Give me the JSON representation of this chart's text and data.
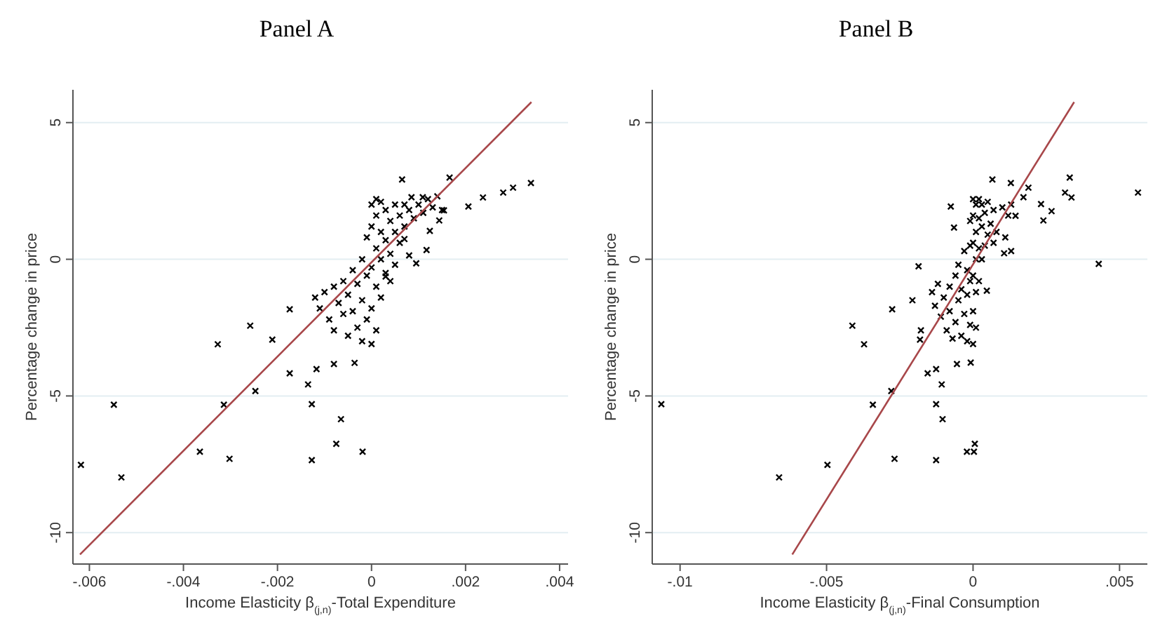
{
  "chart_data": [
    {
      "type": "scatter",
      "title": "Panel A",
      "xlabel": "Income Elasticity β$_{(j,n)}$-Total Expenditure",
      "ylabel": "Percentage change in price",
      "xlim": [
        -0.00635,
        0.00418
      ],
      "ylim": [
        -11.15,
        6.2
      ],
      "xticks": [
        {
          "value": -0.006,
          "label": "-.006"
        },
        {
          "value": -0.004,
          "label": "-.004"
        },
        {
          "value": -0.002,
          "label": "-.002"
        },
        0,
        {
          "value": 0.002,
          "label": ".002"
        },
        {
          "value": 0.004,
          "label": ".004"
        }
      ],
      "yticks": [
        -10,
        -5,
        0,
        5
      ],
      "grid": "y",
      "series": [
        {
          "marker": "cross",
          "color": "#000000",
          "x": [
            -0.00618,
            -0.00548,
            -0.00532,
            -0.00365,
            -0.00327,
            -0.00314,
            -0.00302,
            -0.00258,
            -0.00247,
            -0.00211,
            -0.00174,
            -0.00174,
            -0.00135,
            -0.00127,
            -0.00127,
            -0.00117,
            -0.0008,
            -0.00065,
            -0.00075,
            -0.00036,
            -0.00019,
            0.00065,
            0.00166,
            0.00206,
            0.00237,
            0.0028,
            0.00301,
            0.00339,
            0.00154,
            0.00144,
            0.00124,
            0.00117,
            0.00095,
            0.0008,
            0.00109,
            0.00085,
            0.0007,
            0.0004,
            0.0003,
            -0.0012,
            -0.0011,
            -0.001,
            -0.0009,
            -0.0008,
            -0.0008,
            -0.0007,
            -0.0006,
            -0.0006,
            -0.0005,
            -0.0005,
            -0.0004,
            -0.0004,
            -0.0003,
            -0.0003,
            -0.0002,
            -0.0002,
            -0.0002,
            -0.0001,
            -0.0001,
            -0.0001,
            0,
            0,
            0,
            0,
            0,
            0.0001,
            0.0001,
            0.0001,
            0.0001,
            0.0001,
            0.0002,
            0.0002,
            0.0002,
            0.0002,
            0.0003,
            0.0003,
            0.0003,
            0.0004,
            0.0004,
            0.0005,
            0.0005,
            0.0005,
            0.0006,
            0.0006,
            0.0007,
            0.0007,
            0.0008,
            0.0009,
            0.001,
            0.0011,
            0.0012,
            0.0013,
            0.0014,
            0.0015
          ],
          "values": [
            -7.52,
            -5.32,
            -7.98,
            -7.04,
            -3.11,
            -5.32,
            -7.3,
            -2.43,
            -4.82,
            -2.94,
            -1.83,
            -4.17,
            -4.58,
            -5.3,
            -7.35,
            -4.02,
            -3.83,
            -5.85,
            -6.75,
            -3.79,
            -7.04,
            2.92,
            2.99,
            1.93,
            2.26,
            2.44,
            2.62,
            2.79,
            1.79,
            1.42,
            1.04,
            0.34,
            -0.15,
            0.14,
            2.27,
            2.27,
            0.74,
            -0.8,
            -0.63,
            -1.4,
            -1.8,
            -1.2,
            -2.2,
            -1,
            -2.6,
            -1.6,
            -0.8,
            -2,
            -2.8,
            -1.3,
            -0.4,
            -1.9,
            -2.5,
            -0.9,
            -3,
            -1.5,
            0,
            -2.2,
            -0.6,
            0.8,
            -3.1,
            -1.8,
            -0.3,
            1.2,
            2,
            -2.6,
            -1,
            0.4,
            1.6,
            2.2,
            -1.4,
            0,
            1,
            2.1,
            -0.5,
            0.7,
            1.8,
            0.2,
            1.4,
            -0.2,
            1,
            2,
            0.6,
            1.6,
            1.2,
            2,
            1.8,
            1.5,
            2,
            1.7,
            2.2,
            1.9,
            2.3,
            1.8
          ]
        },
        {
          "type": "line",
          "color": "#a8474a",
          "x": [
            -0.0062,
            0.0034
          ],
          "values": [
            -10.8,
            5.75
          ]
        }
      ]
    },
    {
      "type": "scatter",
      "title": "Panel B",
      "xlabel": "Income Elasticity β$_{(j,n)}$-Final Consumption",
      "ylabel": "Percentage change in price",
      "xlim": [
        -0.01095,
        0.00595
      ],
      "ylim": [
        -11.15,
        6.2
      ],
      "xticks": [
        {
          "value": -0.01,
          "label": "-.01"
        },
        {
          "value": -0.005,
          "label": "-.005"
        },
        0,
        {
          "value": 0.005,
          "label": ".005"
        }
      ],
      "yticks": [
        -10,
        -5,
        0,
        5
      ],
      "grid": "y",
      "series": [
        {
          "marker": "cross",
          "color": "#000000",
          "x": [
            -0.01064,
            -0.00662,
            -0.00497,
            -0.00412,
            -0.00372,
            -0.00342,
            -0.00279,
            -0.00276,
            -0.00268,
            -0.00186,
            -0.00207,
            -0.00181,
            -0.00178,
            -0.00155,
            -0.00126,
            -0.00126,
            -0.00126,
            -0.00107,
            -0.00104,
            -0.00076,
            -0.00065,
            -0.00055,
            -0.00021,
            6e-05,
            3e-05,
            -8e-05,
            0.00066,
            0.00129,
            0.00189,
            0.00172,
            0.00232,
            0.0024,
            0.00268,
            0.00314,
            0.0033,
            0.00336,
            0.00429,
            0.00563,
            0.00145,
            0.00106,
            0.00047,
            -0.0014,
            -0.0013,
            -0.0012,
            -0.0011,
            -0.001,
            -0.0009,
            -0.0008,
            -0.0008,
            -0.0007,
            -0.0006,
            -0.0006,
            -0.0005,
            -0.0005,
            -0.0004,
            -0.0004,
            -0.0003,
            -0.0003,
            -0.0002,
            -0.0002,
            -0.0002,
            -0.0001,
            -0.0001,
            -0.0001,
            -0.0001,
            0,
            0,
            0,
            0,
            0,
            0,
            0.0001,
            0.0001,
            0.0001,
            0.0001,
            0.0001,
            0.0002,
            0.0002,
            0.0002,
            0.0002,
            0.0003,
            0.0003,
            0.0003,
            0.0004,
            0.0004,
            0.0005,
            0.0005,
            0.0006,
            0.0007,
            0.0007,
            0.0008,
            0.001,
            0.0011,
            0.0012,
            0.0013,
            0.0013
          ],
          "values": [
            -5.3,
            -7.98,
            -7.52,
            -2.43,
            -3.11,
            -5.32,
            -4.82,
            -1.83,
            -7.3,
            -0.26,
            -1.5,
            -2.94,
            -2.6,
            -4.17,
            -4.02,
            -5.3,
            -7.35,
            -4.58,
            -5.85,
            1.93,
            1.16,
            -3.83,
            -7.04,
            -6.75,
            -7.04,
            -3.78,
            2.92,
            2.79,
            2.62,
            2.27,
            2.02,
            1.42,
            1.76,
            2.44,
            2.99,
            2.26,
            -0.17,
            2.44,
            1.59,
            0.22,
            -1.15,
            -1.2,
            -1.7,
            -0.9,
            -2.1,
            -1.4,
            -2.6,
            -1,
            -1.9,
            -2.9,
            -0.6,
            -2.3,
            -1.5,
            -0.2,
            -2.8,
            -1.1,
            -2,
            0.3,
            -3,
            -1.3,
            -0.4,
            -2.4,
            -0.8,
            0.5,
            1.4,
            -3.1,
            -1.9,
            -0.6,
            0.6,
            1.6,
            2.2,
            -2.5,
            -1.2,
            0,
            1,
            2,
            -0.8,
            0.4,
            1.5,
            2.2,
            0,
            1.2,
            2,
            0.5,
            1.7,
            0.9,
            2.1,
            1.3,
            0.6,
            1.8,
            1,
            1.9,
            0.8,
            1.6,
            2,
            0.3
          ]
        },
        {
          "type": "line",
          "color": "#a8474a",
          "x": [
            -0.00617,
            0.00345
          ],
          "values": [
            -10.8,
            5.75
          ]
        }
      ]
    }
  ]
}
